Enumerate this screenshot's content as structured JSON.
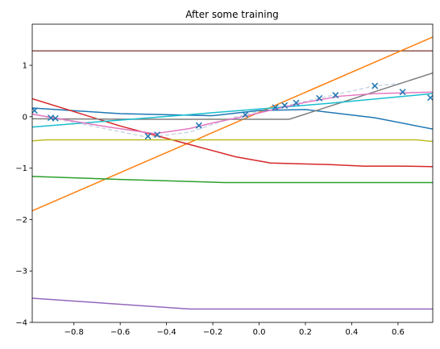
{
  "chart_data": {
    "type": "line",
    "title": "After some training",
    "xlabel": "",
    "ylabel": "",
    "xlim": [
      -0.98,
      0.75
    ],
    "ylim": [
      -4,
      1.8
    ],
    "xticks": [
      -0.8,
      -0.6,
      -0.4,
      -0.2,
      0.0,
      0.2,
      0.4,
      0.6
    ],
    "xtick_labels": [
      "−0.8",
      "−0.6",
      "−0.4",
      "−0.2",
      "0.0",
      "0.2",
      "0.4",
      "0.6"
    ],
    "yticks": [
      -4,
      -3,
      -2,
      -1,
      0,
      1
    ],
    "ytick_labels": [
      "−4",
      "−3",
      "−2",
      "−1",
      "0",
      "1"
    ],
    "grid": false,
    "scatter": {
      "marker": "x",
      "color": "#1f77b4",
      "x": [
        -0.97,
        -0.9,
        -0.88,
        -0.48,
        -0.44,
        -0.26,
        -0.06,
        0.07,
        0.11,
        0.16,
        0.26,
        0.33,
        0.5,
        0.62,
        0.74
      ],
      "y": [
        0.12,
        -0.02,
        -0.03,
        -0.38,
        -0.35,
        -0.17,
        0.04,
        0.18,
        0.22,
        0.27,
        0.36,
        0.42,
        0.6,
        0.48,
        0.37
      ]
    },
    "dashed_curve": {
      "color": "#c8d6e5",
      "x": [
        -0.98,
        -0.9,
        -0.7,
        -0.48,
        -0.3,
        -0.1,
        0.1,
        0.3,
        0.5,
        0.62
      ],
      "y": [
        0.05,
        -0.02,
        -0.2,
        -0.4,
        -0.3,
        0.0,
        0.2,
        0.4,
        0.6,
        0.65
      ]
    },
    "series": [
      {
        "color": "#8c564b",
        "x": [
          -0.98,
          0.75
        ],
        "y": [
          1.28,
          1.28
        ]
      },
      {
        "color": "#ff7f0e",
        "x": [
          -0.98,
          0.75
        ],
        "y": [
          -1.83,
          1.55
        ]
      },
      {
        "color": "#1f77b4",
        "x": [
          -0.98,
          -0.6,
          -0.2,
          0.0,
          0.2,
          0.5,
          0.75
        ],
        "y": [
          0.17,
          0.06,
          0.02,
          0.12,
          0.14,
          -0.02,
          -0.24
        ]
      },
      {
        "color": "#d62728",
        "x": [
          -0.98,
          -0.8,
          -0.6,
          -0.4,
          -0.25,
          -0.1,
          0.05,
          0.3,
          0.45,
          0.6,
          0.75
        ],
        "y": [
          0.35,
          0.1,
          -0.18,
          -0.42,
          -0.6,
          -0.78,
          -0.9,
          -0.93,
          -0.96,
          -0.96,
          -0.97
        ]
      },
      {
        "color": "#2ca02c",
        "x": [
          -0.98,
          -0.6,
          -0.15,
          0.3,
          0.75
        ],
        "y": [
          -1.16,
          -1.22,
          -1.28,
          -1.28,
          -1.28
        ]
      },
      {
        "color": "#9467bd",
        "x": [
          -0.98,
          -0.3,
          0.0,
          0.75
        ],
        "y": [
          -3.53,
          -3.74,
          -3.74,
          -3.74
        ]
      },
      {
        "color": "#bcbd22",
        "x": [
          -0.98,
          -0.92,
          -0.6,
          0.0,
          0.4,
          0.68,
          0.75
        ],
        "y": [
          -0.47,
          -0.45,
          -0.45,
          -0.45,
          -0.45,
          -0.45,
          -0.48
        ]
      },
      {
        "color": "#7f7f7f",
        "x": [
          -0.98,
          -0.5,
          0.0,
          0.13,
          0.75
        ],
        "y": [
          -0.04,
          -0.05,
          -0.05,
          -0.05,
          0.85
        ]
      },
      {
        "color": "#17becf",
        "x": [
          -0.98,
          -0.5,
          0.0,
          0.3,
          0.75
        ],
        "y": [
          -0.2,
          -0.03,
          0.15,
          0.26,
          0.45
        ]
      },
      {
        "color": "#e377c2",
        "x": [
          -0.98,
          -0.85,
          -0.65,
          -0.45,
          -0.3,
          -0.2,
          -0.05,
          0.1,
          0.2,
          0.35,
          0.5,
          0.75
        ],
        "y": [
          0.05,
          -0.05,
          -0.2,
          -0.33,
          -0.23,
          -0.12,
          0.02,
          0.18,
          0.28,
          0.4,
          0.45,
          0.48
        ]
      }
    ]
  }
}
